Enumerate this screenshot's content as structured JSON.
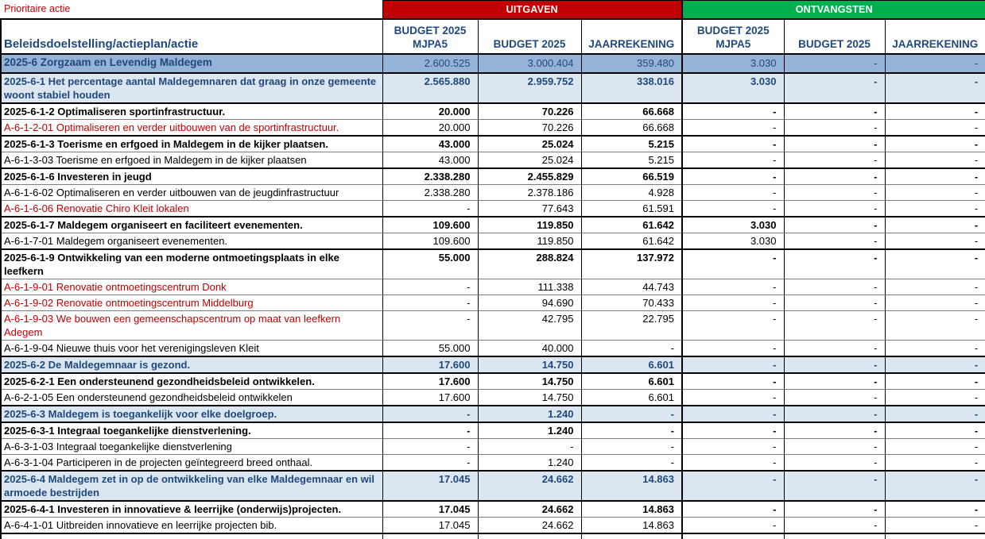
{
  "page": {
    "prioritaire_label": "Prioritaire actie"
  },
  "colors": {
    "uitgaven_band": "#C00000",
    "ontvangsten_band": "#00B050",
    "level1_row_bg": "#95B3D7",
    "level2_row_bg": "#DCE6F1",
    "navy_text": "#1F497D",
    "priority_text": "#C00000"
  },
  "table": {
    "first_column_header": "Beleidsdoelstelling/actieplan/actie",
    "groups": [
      {
        "label": "UITGAVEN"
      },
      {
        "label": "ONTVANGSTEN"
      }
    ],
    "column_headers": [
      "BUDGET 2025\nMJPA5",
      "BUDGET 2025",
      "JAARREKENING",
      "BUDGET 2025\nMJPA5",
      "BUDGET 2025",
      "JAARREKENING"
    ],
    "rows": [
      {
        "type": "level1",
        "label": "2025-6 Zorgzaam en Levendig Maldegem",
        "values": [
          "2.600.525",
          "3.000.404",
          "359.480",
          "3.030",
          "-",
          "-"
        ]
      },
      {
        "type": "level2",
        "label": "2025-6-1 Het percentage aantal Maldegemnaren dat graag in onze gemeente woont stabiel houden",
        "values": [
          "2.565.880",
          "2.959.752",
          "338.016",
          "3.030",
          "-",
          "-"
        ]
      },
      {
        "type": "action",
        "label": "2025-6-1-2 Optimaliseren sportinfrastructuur.",
        "values": [
          "20.000",
          "70.226",
          "66.668",
          "-",
          "-",
          "-"
        ]
      },
      {
        "type": "priority",
        "label": "A-6-1-2-01 Optimaliseren en verder uitbouwen van de sportinfrastructuur.",
        "values": [
          "20.000",
          "70.226",
          "66.668",
          "-",
          "-",
          "-"
        ]
      },
      {
        "type": "action",
        "label": "2025-6-1-3 Toerisme en erfgoed in Maldegem in de kijker plaatsen.",
        "values": [
          "43.000",
          "25.024",
          "5.215",
          "-",
          "-",
          "-"
        ]
      },
      {
        "type": "sub",
        "label": "A-6-1-3-03 Toerisme en erfgoed in Maldegem in de kijker plaatsen",
        "values": [
          "43.000",
          "25.024",
          "5.215",
          "-",
          "-",
          "-"
        ]
      },
      {
        "type": "action",
        "label": "2025-6-1-6 Investeren in jeugd",
        "values": [
          "2.338.280",
          "2.455.829",
          "66.519",
          "-",
          "-",
          "-"
        ]
      },
      {
        "type": "sub",
        "label": "A-6-1-6-02 Optimaliseren en verder uitbouwen van de jeugdinfrastructuur",
        "values": [
          "2.338.280",
          "2.378.186",
          "4.928",
          "-",
          "-",
          "-"
        ]
      },
      {
        "type": "priority",
        "label": "A-6-1-6-06 Renovatie Chiro Kleit lokalen",
        "values": [
          "-",
          "77.643",
          "61.591",
          "-",
          "-",
          "-"
        ]
      },
      {
        "type": "action",
        "label": "2025-6-1-7 Maldegem organiseert en faciliteert evenementen.",
        "values": [
          "109.600",
          "119.850",
          "61.642",
          "3.030",
          "-",
          "-"
        ]
      },
      {
        "type": "sub",
        "label": "A-6-1-7-01 Maldegem organiseert evenementen.",
        "values": [
          "109.600",
          "119.850",
          "61.642",
          "3.030",
          "-",
          "-"
        ]
      },
      {
        "type": "action",
        "label": "2025-6-1-9 Ontwikkeling van een moderne ontmoetingsplaats in elke leefkern",
        "values": [
          "55.000",
          "288.824",
          "137.972",
          "-",
          "-",
          "-"
        ]
      },
      {
        "type": "priority",
        "label": "A-6-1-9-01 Renovatie ontmoetingscentrum Donk",
        "values": [
          "-",
          "111.338",
          "44.743",
          "-",
          "-",
          "-"
        ]
      },
      {
        "type": "priority",
        "label": "A-6-1-9-02 Renovatie ontmoetingscentrum Middelburg",
        "values": [
          "-",
          "94.690",
          "70.433",
          "-",
          "-",
          "-"
        ]
      },
      {
        "type": "priority",
        "label": "A-6-1-9-03 We bouwen een gemeenschapscentrum op maat van leefkern Adegem",
        "values": [
          "-",
          "42.795",
          "22.795",
          "-",
          "-",
          "-"
        ]
      },
      {
        "type": "sub",
        "label": "A-6-1-9-04 Nieuwe thuis voor het verenigingsleven Kleit",
        "values": [
          "55.000",
          "40.000",
          "-",
          "-",
          "-",
          "-"
        ]
      },
      {
        "type": "level2",
        "label": "2025-6-2 De Maldegemnaar is gezond.",
        "values": [
          "17.600",
          "14.750",
          "6.601",
          "-",
          "-",
          "-"
        ]
      },
      {
        "type": "action",
        "label": "2025-6-2-1 Een ondersteunend gezondheidsbeleid ontwikkelen.",
        "values": [
          "17.600",
          "14.750",
          "6.601",
          "-",
          "-",
          "-"
        ]
      },
      {
        "type": "sub",
        "label": "A-6-2-1-05 Een ondersteunend gezondheidsbeleid ontwikkelen",
        "values": [
          "17.600",
          "14.750",
          "6.601",
          "-",
          "-",
          "-"
        ]
      },
      {
        "type": "level2",
        "label": "2025-6-3 Maldegem is toegankelijk voor elke doelgroep.",
        "values": [
          "-",
          "1.240",
          "-",
          "-",
          "-",
          "-"
        ]
      },
      {
        "type": "action",
        "label": "2025-6-3-1 Integraal toegankelijke dienstverlening.",
        "values": [
          "-",
          "1.240",
          "-",
          "-",
          "-",
          "-"
        ]
      },
      {
        "type": "sub",
        "label": "A-6-3-1-03 Integraal toegankelijke dienstverlening",
        "values": [
          "-",
          "-",
          "-",
          "-",
          "-",
          "-"
        ]
      },
      {
        "type": "sub",
        "label": "A-6-3-1-04 Participeren in de projecten geïntegreerd breed onthaal.",
        "values": [
          "-",
          "1.240",
          "-",
          "-",
          "-",
          "-"
        ]
      },
      {
        "type": "level2",
        "label": "2025-6-4 Maldegem zet in op de ontwikkeling van elke Maldegemnaar en wil armoede bestrijden",
        "values": [
          "17.045",
          "24.662",
          "14.863",
          "-",
          "-",
          "-"
        ]
      },
      {
        "type": "action",
        "label": "2025-6-4-1 Investeren in innovatieve & leerrijke (onderwijs)projecten.",
        "values": [
          "17.045",
          "24.662",
          "14.863",
          "-",
          "-",
          "-"
        ]
      },
      {
        "type": "sub",
        "label": "A-6-4-1-01 Uitbreiden innovatieve en leerrijke projecten bib.",
        "values": [
          "17.045",
          "24.662",
          "14.863",
          "-",
          "-",
          "-"
        ]
      }
    ]
  }
}
